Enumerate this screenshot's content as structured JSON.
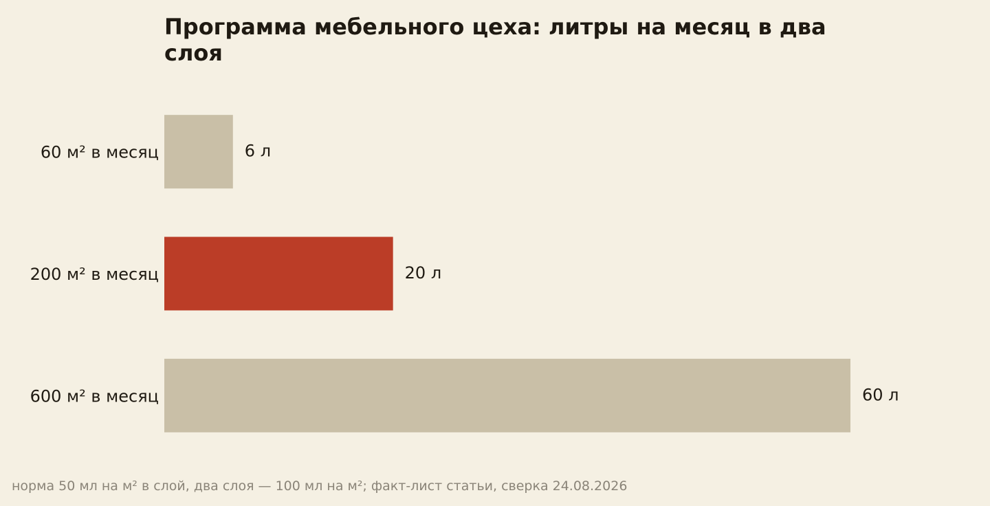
{
  "chart_data": {
    "type": "barh",
    "title": "Программа мебельного цеха: литры на месяц в два слоя",
    "categories": [
      "60 м² в месяц",
      "200 м² в месяц",
      "600 м² в месяц"
    ],
    "values": [
      6,
      20,
      60
    ],
    "value_labels": [
      "6 л",
      "20 л",
      "60 л"
    ],
    "colors": [
      "#c9bfa7",
      "#bb3d27",
      "#c9bfa7"
    ],
    "xlim": [
      0,
      60
    ],
    "note": "норма 50 мл на м² в слой, два слоя — 100 мл на м²; факт-лист статьи, сверка 24.08.2026"
  }
}
